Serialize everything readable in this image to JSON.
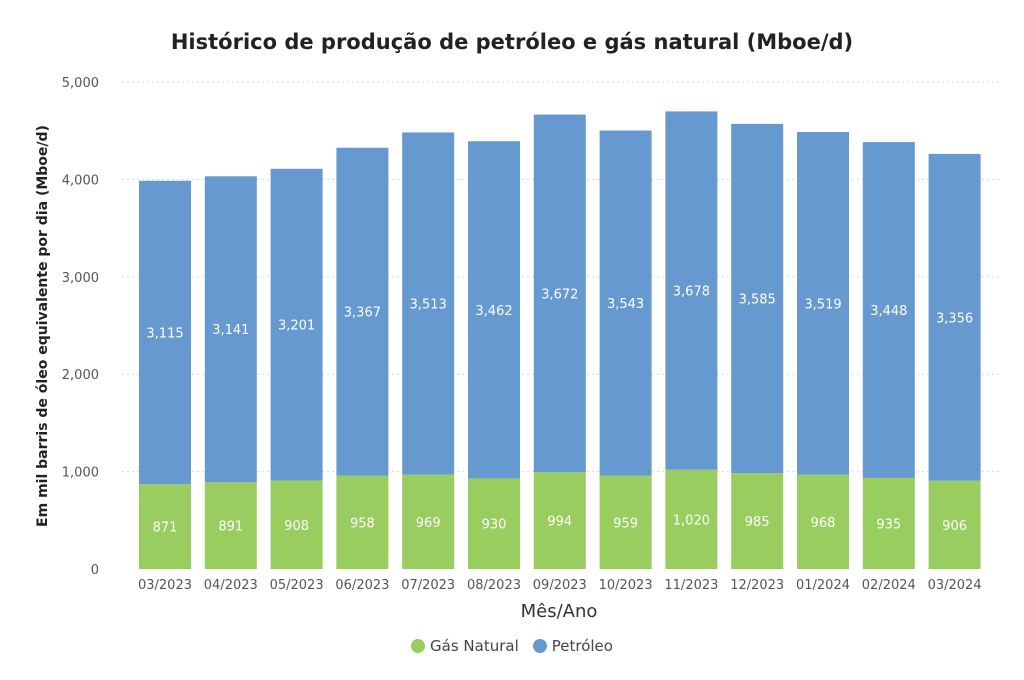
{
  "chart_data": {
    "type": "bar",
    "stacked": true,
    "title": "Histórico de produção de petróleo e gás natural (Mboe/d)",
    "xlabel": "Mês/Ano",
    "ylabel": "Em mil barris de óleo equivalente por dia (Mboe/d)",
    "ylim": [
      0,
      5000
    ],
    "yticks": [
      0,
      1000,
      2000,
      3000,
      4000,
      5000
    ],
    "ytick_labels": [
      "0",
      "1,000",
      "2,000",
      "3,000",
      "4,000",
      "5,000"
    ],
    "grid": true,
    "legend_position": "bottom-center",
    "categories": [
      "03/2023",
      "04/2023",
      "05/2023",
      "06/2023",
      "07/2023",
      "08/2023",
      "09/2023",
      "10/2023",
      "11/2023",
      "12/2023",
      "01/2024",
      "02/2024",
      "03/2024"
    ],
    "series": [
      {
        "name": "Gás Natural",
        "color": "#9acd5f",
        "values": [
          871,
          891,
          908,
          958,
          969,
          930,
          994,
          959,
          1020,
          985,
          968,
          935,
          906
        ],
        "labels": [
          "871",
          "891",
          "908",
          "958",
          "969",
          "930",
          "994",
          "959",
          "1,020",
          "985",
          "968",
          "935",
          "906"
        ]
      },
      {
        "name": "Petróleo",
        "color": "#6699cf",
        "values": [
          3115,
          3141,
          3201,
          3367,
          3513,
          3462,
          3672,
          3543,
          3678,
          3585,
          3519,
          3448,
          3356
        ],
        "labels": [
          "3,115",
          "3,141",
          "3,201",
          "3,367",
          "3,513",
          "3,462",
          "3,672",
          "3,543",
          "3,678",
          "3,585",
          "3,519",
          "3,448",
          "3,356"
        ]
      }
    ]
  }
}
